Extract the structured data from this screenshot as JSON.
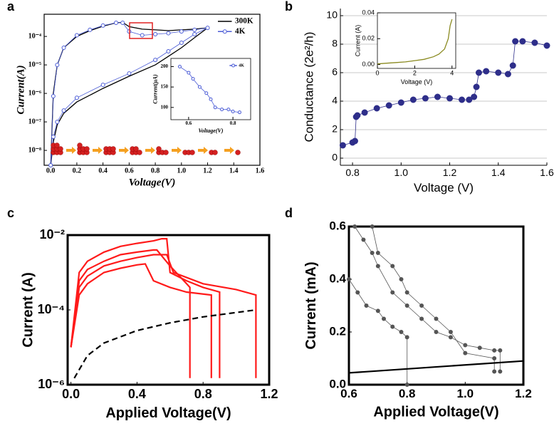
{
  "chart_data": [
    {
      "type": "line",
      "label": "a",
      "x_label": "Voltage(V)",
      "y_label": "Current(A)",
      "log_y": true,
      "legend": "upper right",
      "x": [
        0.0,
        0.02,
        0.05,
        0.1,
        0.2,
        0.3,
        0.4,
        0.5,
        0.55,
        0.6,
        0.7,
        0.8,
        0.9,
        1.0,
        1.1,
        1.2,
        1.1,
        1.0,
        0.9,
        0.8,
        0.6,
        0.4,
        0.2,
        0.1,
        0.05,
        0.02,
        0.0
      ],
      "series": [
        {
          "name": "300K",
          "color": "#000000",
          "mode": "line",
          "values": [
            3e-09,
            1e-06,
            1e-05,
            4e-05,
            0.0001,
            0.00016,
            0.00023,
            0.0003,
            0.00031,
            0.00022,
            0.00018,
            0.00017,
            0.00016,
            0.00017,
            0.00018,
            0.0002,
            9e-05,
            4e-05,
            2e-05,
            1e-05,
            4e-06,
            1.5e-06,
            5e-07,
            2e-07,
            8e-08,
            2e-08,
            3e-09
          ]
        },
        {
          "name": "4K",
          "color": "#4a5bd6",
          "mode": "markers",
          "values": [
            3e-09,
            8e-07,
            1e-05,
            4e-05,
            0.00011,
            0.00017,
            0.00024,
            0.0003,
            0.0003,
            0.00015,
            0.00011,
            0.00012,
            0.00013,
            0.00015,
            0.00017,
            0.0002,
            0.00012,
            6e-05,
            3e-05,
            1.5e-05,
            5e-06,
            2e-06,
            7e-07,
            2.5e-07,
            1e-07,
            3e-08,
            3e-09
          ]
        }
      ],
      "xlim": [
        -0.05,
        1.6
      ],
      "xticks": [
        {
          "value": 0,
          "label": "0.0"
        },
        0.2,
        0.4,
        0.6,
        0.8,
        {
          "value": 1,
          "label": "1.0"
        },
        1.2,
        1.4,
        1.6
      ],
      "ylim": [
        3e-09,
        0.0006
      ],
      "yticks": [
        {
          "value": 1e-08,
          "label": "10⁻⁸"
        },
        {
          "value": 1e-07,
          "label": "10⁻⁷"
        },
        {
          "value": 1e-06,
          "label": "10⁻⁶"
        },
        {
          "value": 1e-05,
          "label": "10⁻⁵"
        },
        {
          "value": 0.0001,
          "label": "10⁻⁴"
        }
      ],
      "inset": {
        "type": "line",
        "x_label": "Voltage(V)",
        "y_label": "Current(μA)",
        "legend": "upper right",
        "x": [
          0.56,
          0.6,
          0.62,
          0.65,
          0.68,
          0.7,
          0.72,
          0.75,
          0.78,
          0.8,
          0.83
        ],
        "series": [
          {
            "name": "4K",
            "color": "#4a5bd6",
            "mode": "markers",
            "values": [
              200,
              185,
              170,
              150,
              135,
              120,
              100,
              95,
              95,
              90,
              88
            ]
          }
        ],
        "xlim": [
          0.52,
          0.88
        ],
        "xticks": [
          0.6,
          0.8
        ],
        "ylim": [
          70,
          220
        ],
        "yticks": [
          100,
          150,
          200
        ]
      }
    },
    {
      "type": "line",
      "label": "b",
      "x_label": "Voltage (V)",
      "y_label": "Conductance (2e²/h)",
      "grid": true,
      "x": [
        0.76,
        0.8,
        0.81,
        0.815,
        0.82,
        0.85,
        0.9,
        0.95,
        1.0,
        1.05,
        1.1,
        1.15,
        1.2,
        1.25,
        1.28,
        1.3,
        1.31,
        1.32,
        1.35,
        1.4,
        1.44,
        1.46,
        1.47,
        1.5,
        1.55,
        1.6
      ],
      "series": [
        {
          "color": "#2e2e8a",
          "mode": "markers",
          "values": [
            0.9,
            1.1,
            1.2,
            2.9,
            3.0,
            3.2,
            3.5,
            3.7,
            3.9,
            4.1,
            4.2,
            4.3,
            4.2,
            4.1,
            4.1,
            4.3,
            5.0,
            6.0,
            6.1,
            6.0,
            5.9,
            6.5,
            8.2,
            8.2,
            8.1,
            7.9
          ]
        }
      ],
      "xlim": [
        0.75,
        1.6
      ],
      "xticks": [
        0.8,
        {
          "value": 1,
          "label": "1.0"
        },
        1.2,
        1.4,
        1.6
      ],
      "ylim": [
        -0.5,
        10.5
      ],
      "yticks": [
        0,
        2,
        4,
        6,
        8,
        10
      ],
      "inset": {
        "type": "line",
        "x_label": "Voltage (V)",
        "y_label": "Current (A)",
        "x": [
          0,
          0.5,
          1,
          1.5,
          2,
          2.5,
          3,
          3.3,
          3.6,
          3.8,
          3.9,
          4.0
        ],
        "series": [
          {
            "color": "#8a8a20",
            "mode": "line",
            "values": [
              0.0005,
              0.001,
              0.0015,
              0.002,
              0.003,
              0.004,
              0.006,
              0.008,
              0.012,
              0.02,
              0.03,
              0.035
            ]
          }
        ],
        "xlim": [
          0,
          4.2
        ],
        "xticks": [
          0,
          2,
          4
        ],
        "ylim": [
          -0.003,
          0.04
        ],
        "yticks": [
          {
            "value": 0,
            "label": "0.00"
          },
          0.02,
          0.04
        ]
      }
    },
    {
      "type": "line",
      "label": "c",
      "x_label": "Applied Voltage(V)",
      "y_label": "Current (A)",
      "log_y": true,
      "series": [
        {
          "color": "#ff1a1a",
          "mode": "line",
          "x": [
            0.0,
            0.05,
            0.1,
            0.2,
            0.3,
            0.4,
            0.5,
            0.55,
            0.58,
            0.6,
            0.7,
            0.8,
            0.9,
            0.9
          ],
          "values": [
            1e-05,
            0.001,
            0.002,
            0.0035,
            0.005,
            0.006,
            0.007,
            0.008,
            0.008,
            0.001,
            0.0006,
            0.0004,
            0.0003,
            1.5e-06
          ]
        },
        {
          "color": "#ff1a1a",
          "mode": "line",
          "x": [
            0.0,
            0.05,
            0.1,
            0.2,
            0.3,
            0.4,
            0.5,
            0.52,
            0.6,
            0.7,
            0.72,
            0.72
          ],
          "values": [
            1e-05,
            0.0006,
            0.0012,
            0.002,
            0.003,
            0.0035,
            0.004,
            0.004,
            0.0015,
            0.0005,
            0.0004,
            1.5e-06
          ]
        },
        {
          "color": "#ff1a1a",
          "mode": "line",
          "x": [
            0.0,
            0.05,
            0.1,
            0.2,
            0.3,
            0.4,
            0.5,
            0.58,
            0.62,
            0.8,
            1.0,
            1.12,
            1.12
          ],
          "values": [
            1e-05,
            0.0004,
            0.0008,
            0.0015,
            0.002,
            0.0025,
            0.003,
            0.003,
            0.001,
            0.0005,
            0.00035,
            0.00025,
            1.5e-06
          ]
        },
        {
          "color": "#ff1a1a",
          "mode": "line",
          "x": [
            0.0,
            0.05,
            0.1,
            0.2,
            0.3,
            0.4,
            0.45,
            0.5,
            0.6,
            0.7,
            0.85,
            0.85
          ],
          "values": [
            1e-05,
            0.00025,
            0.0005,
            0.001,
            0.0013,
            0.0016,
            0.0017,
            0.0006,
            0.0004,
            0.0003,
            0.00025,
            1.5e-06
          ]
        },
        {
          "color": "#000000",
          "mode": "line",
          "dash": true,
          "x": [
            0.02,
            0.1,
            0.2,
            0.4,
            0.6,
            0.8,
            1.0,
            1.12
          ],
          "values": [
            1.5e-06,
            6e-06,
            1.3e-05,
            2.8e-05,
            4.5e-05,
            6.5e-05,
            8.5e-05,
            0.0001
          ]
        }
      ],
      "xlim": [
        -0.02,
        1.2
      ],
      "xticks": [
        {
          "value": 0,
          "label": "0.0"
        },
        0.4,
        0.8,
        1.2
      ],
      "ylim": [
        1e-06,
        0.01
      ],
      "yticks": [
        {
          "value": 1e-06,
          "label": "10⁻⁶"
        },
        {
          "value": 0.0001,
          "label": "10⁻⁴"
        },
        {
          "value": 0.01,
          "label": "10⁻²"
        }
      ]
    },
    {
      "type": "line",
      "label": "d",
      "x_label": "Applied Voltage(V)",
      "y_label": "Current (mA)",
      "series": [
        {
          "color": "#555555",
          "mode": "markers",
          "x": [
            0.62,
            0.65,
            0.68,
            0.7,
            0.75,
            0.8,
            0.85,
            0.9,
            0.95,
            1.0,
            1.05,
            1.1,
            1.12,
            1.12
          ],
          "values": [
            0.6,
            0.55,
            0.5,
            0.45,
            0.35,
            0.3,
            0.25,
            0.2,
            0.18,
            0.15,
            0.14,
            0.13,
            0.13,
            0.05
          ]
        },
        {
          "color": "#555555",
          "mode": "markers",
          "x": [
            0.6,
            0.63,
            0.66,
            0.7,
            0.72,
            0.75,
            0.78,
            0.8,
            0.8
          ],
          "values": [
            0.4,
            0.35,
            0.3,
            0.28,
            0.25,
            0.22,
            0.2,
            0.18,
            0.0
          ]
        },
        {
          "color": "#555555",
          "mode": "markers",
          "x": [
            0.68,
            0.7,
            0.75,
            0.78,
            0.8,
            0.85,
            0.9,
            0.95,
            1.0,
            1.1,
            1.1
          ],
          "values": [
            0.6,
            0.5,
            0.45,
            0.4,
            0.35,
            0.3,
            0.25,
            0.2,
            0.12,
            0.1,
            0.05
          ]
        },
        {
          "color": "#000000",
          "mode": "line",
          "x": [
            0.6,
            1.2
          ],
          "values": [
            0.045,
            0.09
          ]
        }
      ],
      "xlim": [
        0.6,
        1.2
      ],
      "xticks": [
        0.6,
        0.8,
        {
          "value": 1,
          "label": "1.0"
        },
        1.2
      ],
      "ylim": [
        0,
        0.6
      ],
      "yticks": [
        {
          "value": 0,
          "label": "0.0"
        },
        0.2,
        0.4,
        0.6
      ]
    }
  ]
}
